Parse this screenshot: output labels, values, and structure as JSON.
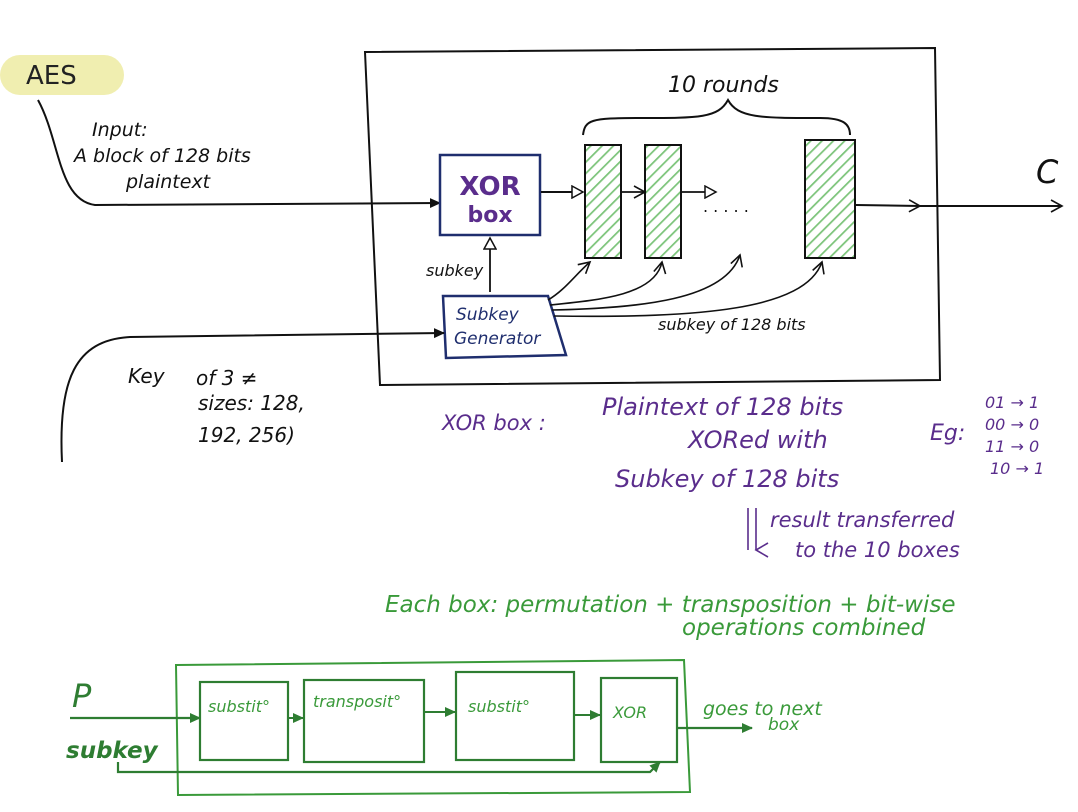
{
  "title_badge": "AES",
  "colors": {
    "ink": "#111111",
    "purple": "#5a2d8c",
    "navy": "#1f2e6e",
    "green": "#3a9a3a",
    "dark_green": "#2e7d32",
    "hatch": "#7cc47a",
    "badge": "#f0eeb0"
  },
  "input": {
    "line1": "Input:",
    "line2": "A block of 128 bits",
    "line3": "plaintext"
  },
  "rounds_label": "10 rounds",
  "xor_box": {
    "line1": "XOR",
    "line2": "box"
  },
  "subkey_small": "subkey",
  "subkey_gen": {
    "line1": "Subkey",
    "line2": "Generator"
  },
  "subkey_bits": "subkey of 128 bits",
  "output_label": "C",
  "ellipsis": ". . . . .",
  "key": {
    "line1": "Key",
    "line2": "of 3 ≠",
    "line3": "sizes: 128,",
    "line4": "192, 256)"
  },
  "explanation": {
    "xor_label": "XOR box :",
    "line1": "Plaintext of 128 bits",
    "line2": "XORed with",
    "line3": "Subkey of 128 bits",
    "result1": "result transferred",
    "result2": "to the 10 boxes"
  },
  "example": {
    "label": "Eg:",
    "rows": [
      "01 → 1",
      "00 → 0",
      "11 → 0",
      "10 → 1"
    ]
  },
  "each_box": {
    "line1": "Each box: permutation + transposition + bit-wise",
    "line2": "operations combined"
  },
  "pipeline": {
    "p_label": "P",
    "subkey_label": "subkey",
    "boxes": [
      "substit°",
      "transposit°",
      "substit°",
      "XOR"
    ],
    "next": "goes to next",
    "next2": "box"
  }
}
